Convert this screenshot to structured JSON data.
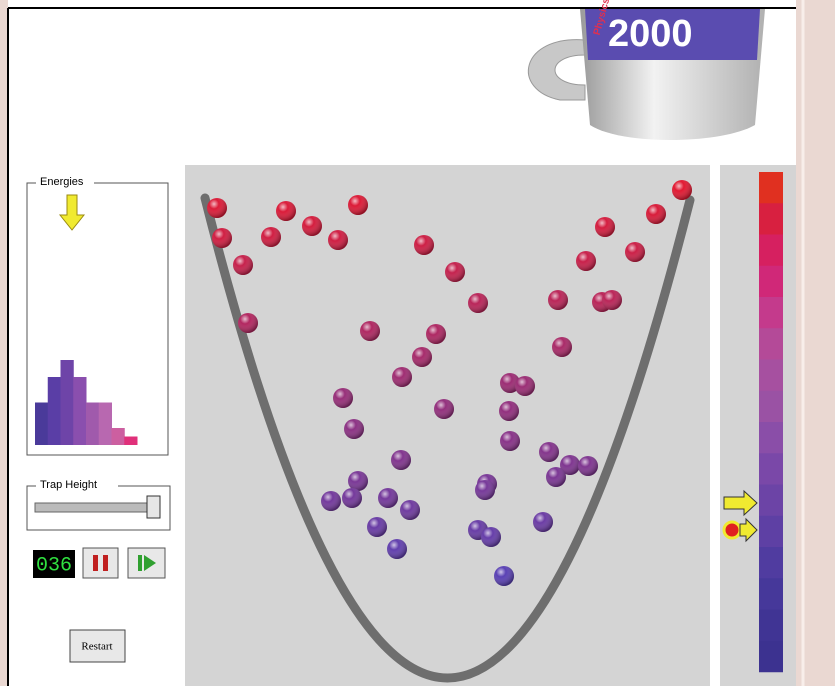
{
  "header": {
    "mug_brand": "Physics",
    "mug_text": "2000"
  },
  "energies": {
    "title": "Energies",
    "histogram": {
      "type": "bar",
      "values": [
        5,
        8,
        10,
        8,
        5,
        5,
        2,
        1
      ],
      "colors": [
        "#4a3a9a",
        "#5a3ea6",
        "#6e44a8",
        "#8a4fae",
        "#a05aac",
        "#b868b0",
        "#cc5fa0",
        "#e0307a"
      ]
    }
  },
  "trap_height": {
    "title": "Trap Height"
  },
  "controls": {
    "counter": "036",
    "restart": "Restart"
  }
}
